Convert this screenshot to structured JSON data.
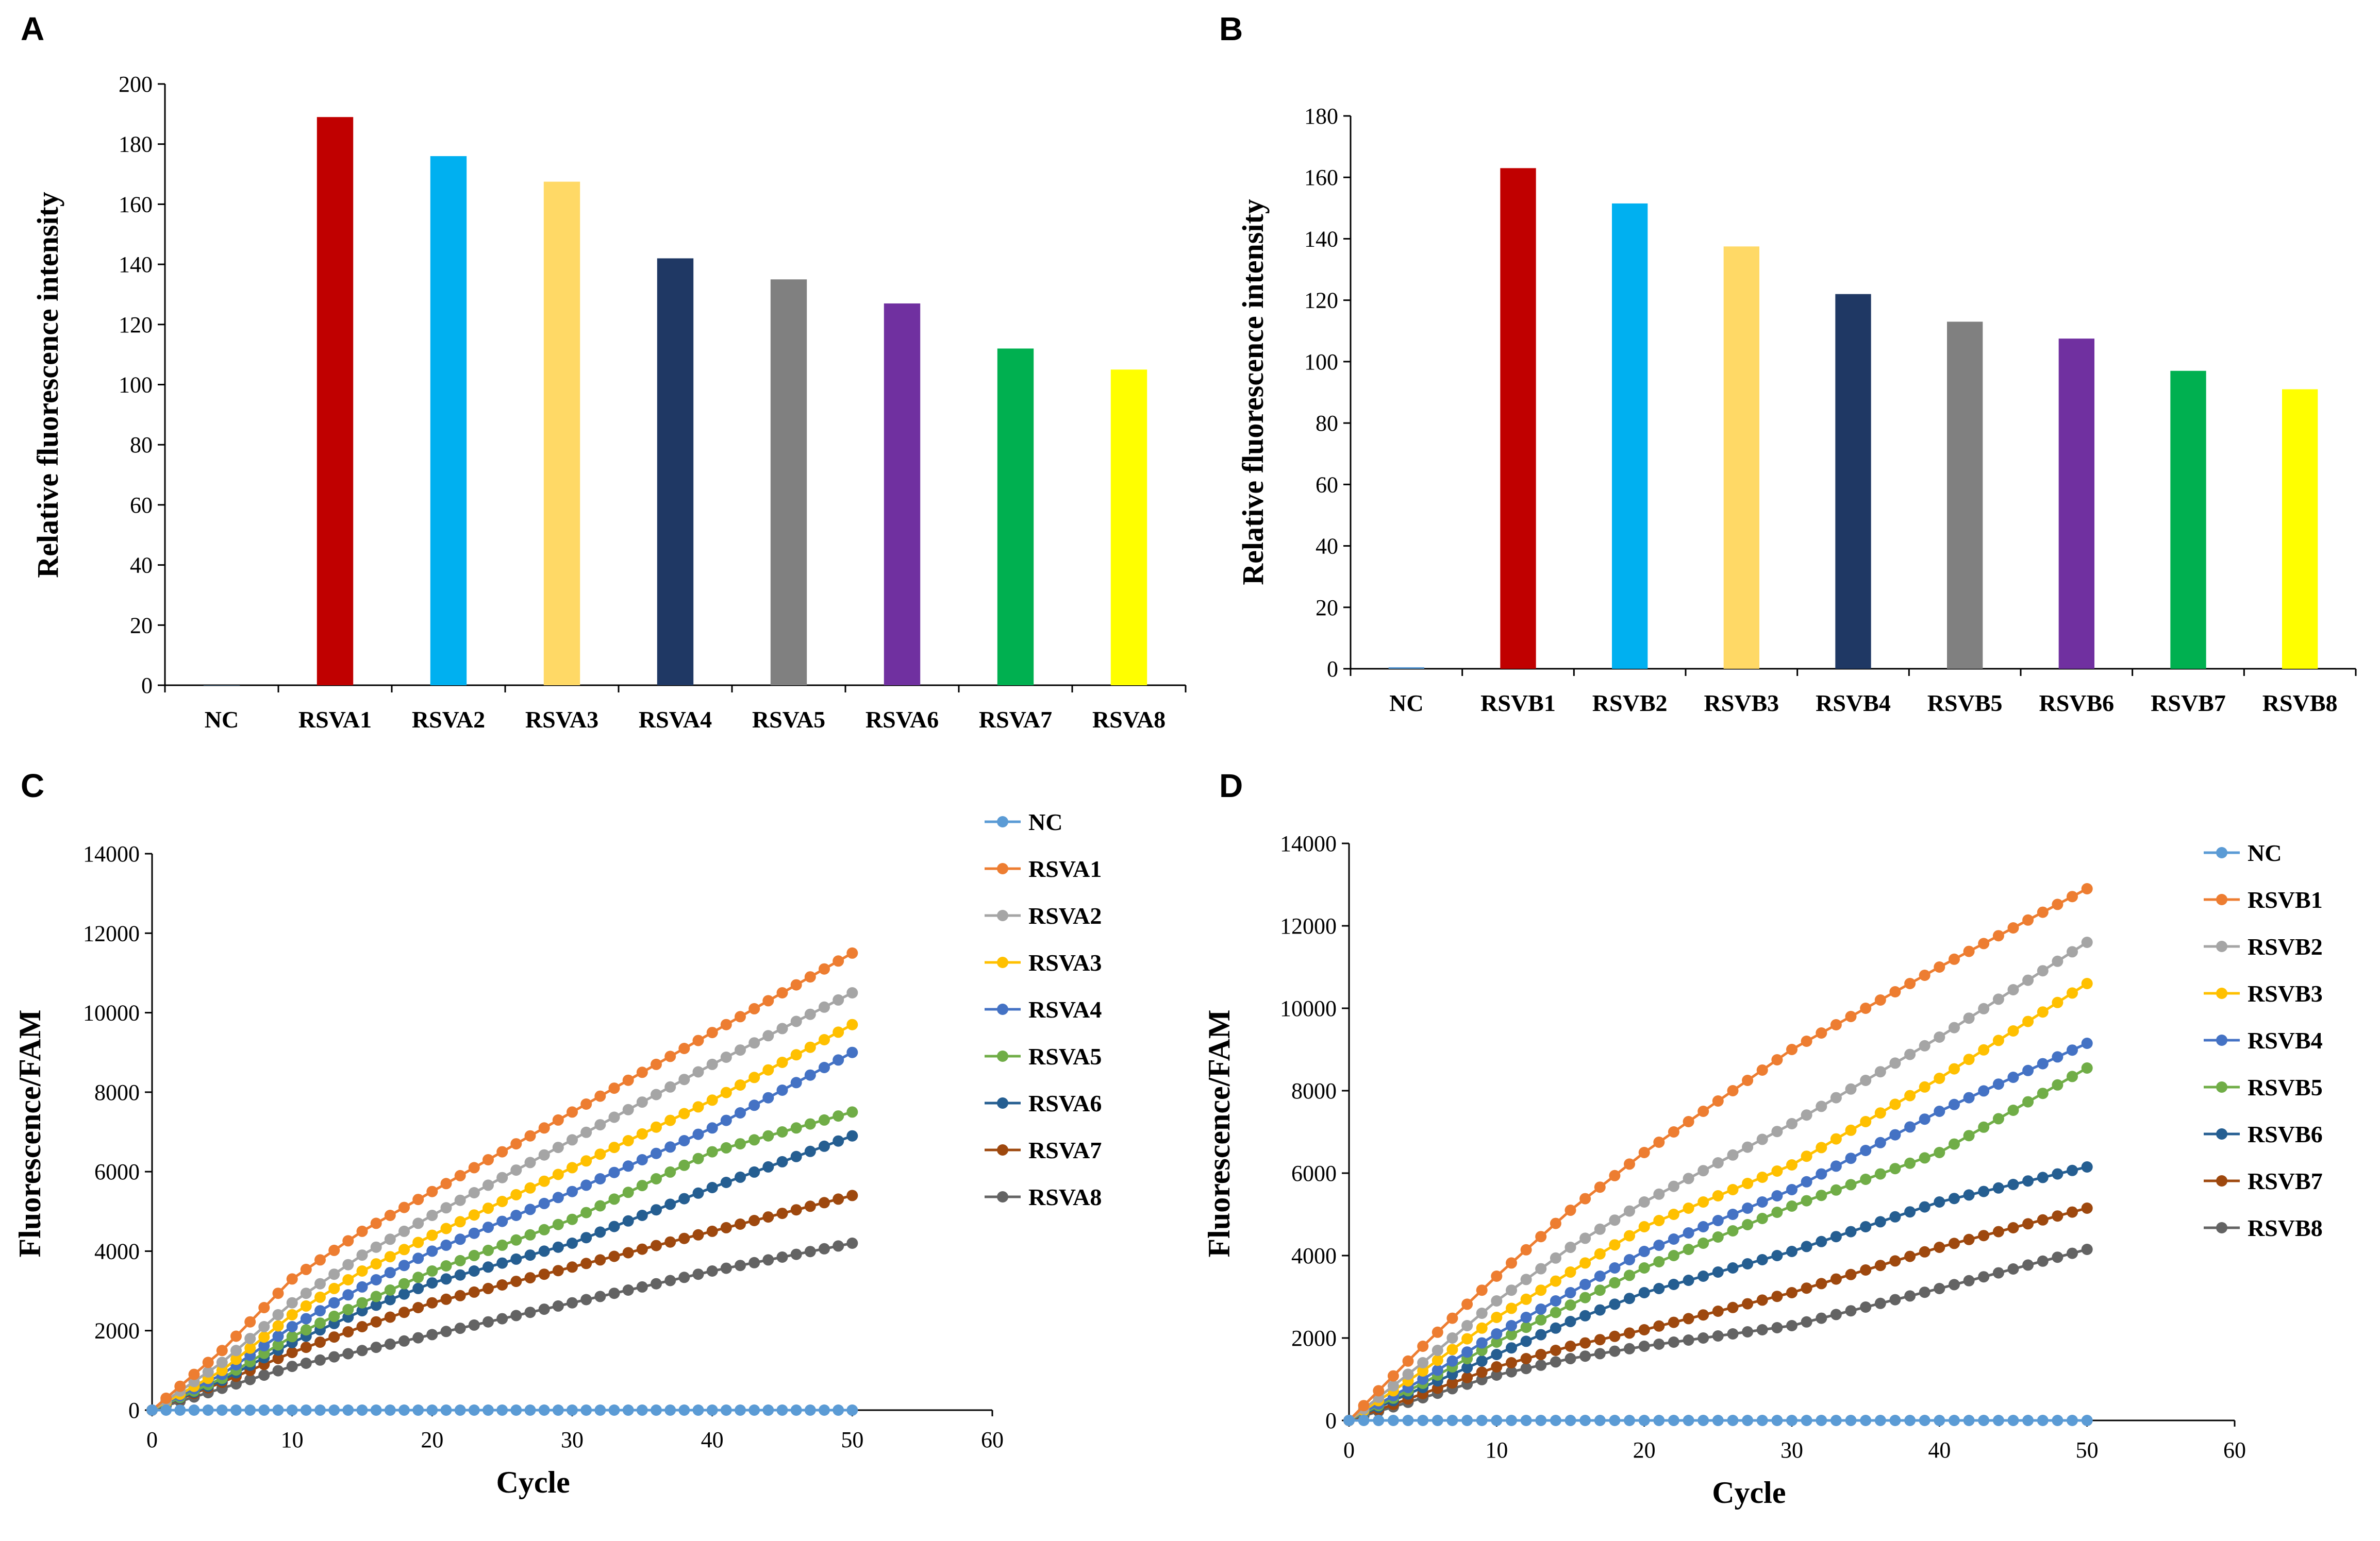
{
  "chart_data": [
    {
      "panel": "A",
      "type": "bar",
      "title": "",
      "xlabel": "",
      "ylabel": "Relative fluorescence intensity",
      "ylim": [
        0,
        200
      ],
      "yticks": [
        0,
        20,
        40,
        60,
        80,
        100,
        120,
        140,
        160,
        180,
        200
      ],
      "categories": [
        "NC",
        "RSVA1",
        "RSVA2",
        "RSVA3",
        "RSVA4",
        "RSVA5",
        "RSVA6",
        "RSVA7",
        "RSVA8"
      ],
      "values": [
        0,
        189,
        176,
        167.5,
        142,
        135,
        127,
        112,
        105
      ],
      "colors": [
        "#5b9bd5",
        "#c00000",
        "#00b0f0",
        "#ffd966",
        "#1f3864",
        "#808080",
        "#7030a0",
        "#00b050",
        "#ffff00"
      ],
      "grid": false,
      "legend": "none"
    },
    {
      "panel": "B",
      "type": "bar",
      "title": "",
      "xlabel": "",
      "ylabel": "Relative fluorescence intensity",
      "ylim": [
        0,
        180
      ],
      "yticks": [
        0,
        20,
        40,
        60,
        80,
        100,
        120,
        140,
        160,
        180
      ],
      "categories": [
        "NC",
        "RSVB1",
        "RSVB2",
        "RSVB3",
        "RSVB4",
        "RSVB5",
        "RSVB6",
        "RSVB7",
        "RSVB8"
      ],
      "values": [
        0.5,
        163,
        151.5,
        137.5,
        122,
        113,
        107.5,
        97,
        91
      ],
      "colors": [
        "#5b9bd5",
        "#c00000",
        "#00b0f0",
        "#ffd966",
        "#1f3864",
        "#808080",
        "#7030a0",
        "#00b050",
        "#ffff00"
      ],
      "grid": false,
      "legend": "none"
    },
    {
      "panel": "C",
      "type": "line",
      "title": "",
      "xlabel": "Cycle",
      "ylabel": "Fluorescence/FAM",
      "xlim": [
        0,
        60
      ],
      "ylim": [
        0,
        14000
      ],
      "xticks": [
        0,
        10,
        20,
        30,
        40,
        50,
        60
      ],
      "yticks": [
        0,
        2000,
        4000,
        6000,
        8000,
        10000,
        12000,
        14000
      ],
      "x_range": [
        0,
        50
      ],
      "grid": false,
      "legend": "right",
      "series": [
        {
          "name": "NC",
          "color": "#5b9bd5",
          "anchors": [
            [
              0,
              0
            ],
            [
              50,
              0
            ]
          ]
        },
        {
          "name": "RSVA1",
          "color": "#ed7d31",
          "anchors": [
            [
              0,
              0
            ],
            [
              5,
              1500
            ],
            [
              10,
              3300
            ],
            [
              15,
              4500
            ],
            [
              20,
              5500
            ],
            [
              30,
              7500
            ],
            [
              40,
              9500
            ],
            [
              50,
              11500
            ]
          ]
        },
        {
          "name": "RSVA2",
          "color": "#a5a5a5",
          "anchors": [
            [
              0,
              0
            ],
            [
              5,
              1200
            ],
            [
              10,
              2700
            ],
            [
              15,
              3900
            ],
            [
              20,
              4900
            ],
            [
              30,
              6800
            ],
            [
              40,
              8700
            ],
            [
              50,
              10500
            ]
          ]
        },
        {
          "name": "RSVA3",
          "color": "#ffc000",
          "anchors": [
            [
              0,
              0
            ],
            [
              5,
              1000
            ],
            [
              10,
              2400
            ],
            [
              15,
              3500
            ],
            [
              20,
              4400
            ],
            [
              30,
              6100
            ],
            [
              40,
              7800
            ],
            [
              50,
              9700
            ]
          ]
        },
        {
          "name": "RSVA4",
          "color": "#4472c4",
          "anchors": [
            [
              0,
              0
            ],
            [
              5,
              900
            ],
            [
              10,
              2100
            ],
            [
              15,
              3100
            ],
            [
              20,
              4000
            ],
            [
              30,
              5500
            ],
            [
              40,
              7100
            ],
            [
              50,
              9000
            ]
          ]
        },
        {
          "name": "RSVA5",
          "color": "#70ad47",
          "anchors": [
            [
              0,
              0
            ],
            [
              5,
              800
            ],
            [
              10,
              1850
            ],
            [
              15,
              2700
            ],
            [
              20,
              3500
            ],
            [
              30,
              4800
            ],
            [
              40,
              6500
            ],
            [
              50,
              7500
            ]
          ]
        },
        {
          "name": "RSVA6",
          "color": "#255e91",
          "anchors": [
            [
              0,
              0
            ],
            [
              5,
              750
            ],
            [
              10,
              1700
            ],
            [
              15,
              2500
            ],
            [
              20,
              3200
            ],
            [
              30,
              4200
            ],
            [
              40,
              5600
            ],
            [
              50,
              6900
            ]
          ]
        },
        {
          "name": "RSVA7",
          "color": "#9e480e",
          "anchors": [
            [
              0,
              0
            ],
            [
              5,
              700
            ],
            [
              10,
              1450
            ],
            [
              15,
              2100
            ],
            [
              20,
              2700
            ],
            [
              30,
              3600
            ],
            [
              40,
              4500
            ],
            [
              50,
              5400
            ]
          ]
        },
        {
          "name": "RSVA8",
          "color": "#636363",
          "anchors": [
            [
              0,
              0
            ],
            [
              5,
              550
            ],
            [
              10,
              1100
            ],
            [
              15,
              1500
            ],
            [
              20,
              1900
            ],
            [
              30,
              2700
            ],
            [
              40,
              3500
            ],
            [
              50,
              4200
            ]
          ]
        }
      ]
    },
    {
      "panel": "D",
      "type": "line",
      "title": "",
      "xlabel": "Cycle",
      "ylabel": "Fluorescence/FAM",
      "xlim": [
        0,
        60
      ],
      "ylim": [
        0,
        14000
      ],
      "xticks": [
        0,
        10,
        20,
        30,
        40,
        50,
        60
      ],
      "yticks": [
        0,
        2000,
        4000,
        6000,
        8000,
        10000,
        12000,
        14000
      ],
      "x_range": [
        0,
        50
      ],
      "grid": false,
      "legend": "right",
      "series": [
        {
          "name": "NC",
          "color": "#5b9bd5",
          "anchors": [
            [
              0,
              0
            ],
            [
              50,
              0
            ]
          ]
        },
        {
          "name": "RSVB1",
          "color": "#ed7d31",
          "anchors": [
            [
              0,
              0
            ],
            [
              5,
              1800
            ],
            [
              10,
              3500
            ],
            [
              15,
              5100
            ],
            [
              20,
              6500
            ],
            [
              30,
              9000
            ],
            [
              40,
              11000
            ],
            [
              50,
              12900
            ]
          ]
        },
        {
          "name": "RSVB2",
          "color": "#a5a5a5",
          "anchors": [
            [
              0,
              0
            ],
            [
              5,
              1400
            ],
            [
              10,
              2900
            ],
            [
              15,
              4200
            ],
            [
              20,
              5300
            ],
            [
              30,
              7200
            ],
            [
              40,
              9300
            ],
            [
              50,
              11600
            ]
          ]
        },
        {
          "name": "RSVB3",
          "color": "#ffc000",
          "anchors": [
            [
              0,
              0
            ],
            [
              5,
              1200
            ],
            [
              10,
              2500
            ],
            [
              15,
              3600
            ],
            [
              20,
              4700
            ],
            [
              30,
              6200
            ],
            [
              40,
              8300
            ],
            [
              50,
              10600
            ]
          ]
        },
        {
          "name": "RSVB4",
          "color": "#4472c4",
          "anchors": [
            [
              0,
              0
            ],
            [
              5,
              1000
            ],
            [
              10,
              2100
            ],
            [
              15,
              3100
            ],
            [
              20,
              4100
            ],
            [
              30,
              5600
            ],
            [
              40,
              7500
            ],
            [
              50,
              9150
            ]
          ]
        },
        {
          "name": "RSVB5",
          "color": "#70ad47",
          "anchors": [
            [
              0,
              0
            ],
            [
              5,
              900
            ],
            [
              10,
              1900
            ],
            [
              15,
              2800
            ],
            [
              20,
              3700
            ],
            [
              30,
              5200
            ],
            [
              40,
              6500
            ],
            [
              50,
              8550
            ]
          ]
        },
        {
          "name": "RSVB6",
          "color": "#255e91",
          "anchors": [
            [
              0,
              0
            ],
            [
              5,
              800
            ],
            [
              10,
              1600
            ],
            [
              15,
              2400
            ],
            [
              20,
              3100
            ],
            [
              30,
              4100
            ],
            [
              40,
              5300
            ],
            [
              50,
              6150
            ]
          ]
        },
        {
          "name": "RSVB7",
          "color": "#9e480e",
          "anchors": [
            [
              0,
              0
            ],
            [
              5,
              650
            ],
            [
              10,
              1300
            ],
            [
              15,
              1800
            ],
            [
              20,
              2200
            ],
            [
              30,
              3100
            ],
            [
              40,
              4200
            ],
            [
              50,
              5150
            ]
          ]
        },
        {
          "name": "RSVB8",
          "color": "#636363",
          "anchors": [
            [
              0,
              0
            ],
            [
              5,
              550
            ],
            [
              10,
              1100
            ],
            [
              15,
              1500
            ],
            [
              20,
              1800
            ],
            [
              30,
              2300
            ],
            [
              40,
              3200
            ],
            [
              50,
              4150
            ]
          ]
        }
      ]
    }
  ]
}
